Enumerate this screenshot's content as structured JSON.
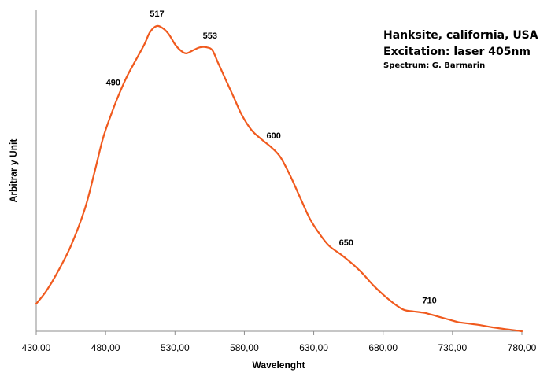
{
  "chart_data": {
    "type": "line",
    "title_lines": [
      "Hanksite, california, USA",
      "Excitation: laser 405nm"
    ],
    "subtitle": "Spectrum: G. Barmarin",
    "xlabel": "Wavelenght",
    "ylabel": "Arbitrar y Unit",
    "xlim": [
      430,
      780
    ],
    "ylim": [
      0,
      1
    ],
    "x_ticks": [
      "430,00",
      "480,00",
      "530,00",
      "580,00",
      "630,00",
      "680,00",
      "730,00",
      "780,00"
    ],
    "grid": false,
    "line_color": "#f05a1e",
    "series": [
      {
        "x": [
          430,
          437,
          445,
          455,
          465,
          472,
          478,
          484,
          490,
          496,
          502,
          508,
          512,
          517,
          522,
          526,
          530,
          534,
          538,
          543,
          548,
          553,
          557,
          561,
          566,
          572,
          578,
          585,
          592,
          600,
          606,
          613,
          620,
          627,
          634,
          641,
          650,
          658,
          665,
          673,
          680,
          688,
          695,
          702,
          710,
          718,
          726,
          734,
          742,
          750,
          760,
          770,
          780
        ],
        "y": [
          0.09,
          0.13,
          0.19,
          0.28,
          0.4,
          0.52,
          0.63,
          0.71,
          0.78,
          0.84,
          0.89,
          0.94,
          0.98,
          1.0,
          0.99,
          0.97,
          0.94,
          0.92,
          0.91,
          0.92,
          0.93,
          0.93,
          0.92,
          0.88,
          0.83,
          0.77,
          0.71,
          0.66,
          0.63,
          0.6,
          0.57,
          0.51,
          0.44,
          0.37,
          0.32,
          0.28,
          0.25,
          0.22,
          0.19,
          0.15,
          0.12,
          0.09,
          0.07,
          0.065,
          0.06,
          0.05,
          0.04,
          0.03,
          0.025,
          0.02,
          0.012,
          0.006,
          0.0
        ]
      }
    ],
    "annotations": [
      {
        "text": "517",
        "x": 517
      },
      {
        "text": "553",
        "x": 553
      },
      {
        "text": "490",
        "x": 490
      },
      {
        "text": "600",
        "x": 600
      },
      {
        "text": "650",
        "x": 650
      },
      {
        "text": "710",
        "x": 710
      }
    ]
  }
}
